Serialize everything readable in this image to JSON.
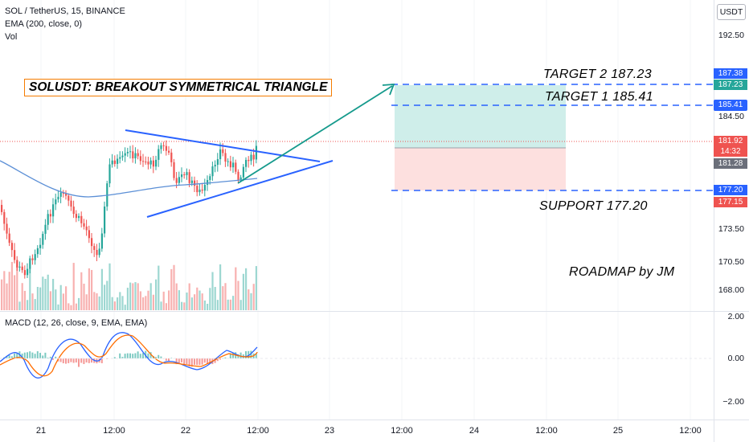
{
  "header": {
    "symbol_line": "SOL / TetherUS, 15, BINANCE",
    "ema_line": "EMA (200, close, 0)",
    "vol_line": "Vol",
    "currency": "USDT"
  },
  "macd_legend": "MACD (12, 26, close, 9, EMA, EMA)",
  "price_scale": [
    "192.50",
    "184.50",
    "173.50",
    "170.50",
    "168.00"
  ],
  "price_tags": {
    "target2_line": "187.38",
    "target2": "187.23",
    "target1": "185.41",
    "current": "181.92",
    "countdown": "14:32",
    "ema": "181.28",
    "support_line": "177.20",
    "support": "177.15"
  },
  "macd_scale": [
    "2.00",
    "0.00",
    "−2.00"
  ],
  "time_axis": [
    "21",
    "12:00",
    "22",
    "12:00",
    "23",
    "12:00",
    "24",
    "12:00",
    "25",
    "12:00"
  ],
  "annotations": {
    "title": "SOLUSDT: BREAKOUT SYMMETRICAL TRIANGLE",
    "target2": "TARGET 2  187.23",
    "target1": "TARGET 1  185.41",
    "support": "SUPPORT 177.20",
    "author": "ROADMAP by JM"
  },
  "colors": {
    "up": "#26a69a",
    "down": "#ef5350",
    "trendline": "#2962ff",
    "ema": "#5b8fd6",
    "target_zone": "#cfeeea",
    "stop_zone": "#fde0df",
    "arrow": "#159a8c",
    "title_border": "#f57c00",
    "macd": "#2962ff",
    "signal": "#ff6d00"
  }
}
